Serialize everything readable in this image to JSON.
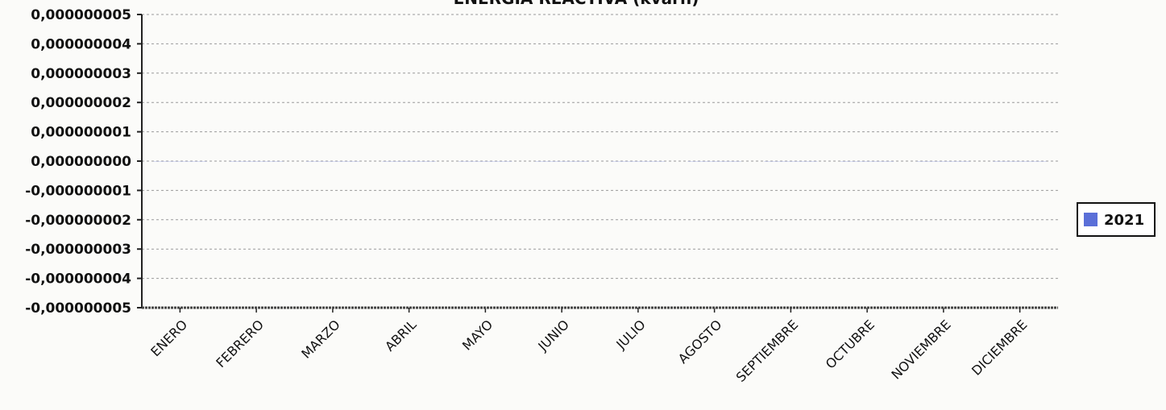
{
  "chart_data": {
    "type": "bar",
    "title": "ENERGIA REACTIVA (kvarh)",
    "xlabel": "",
    "ylabel": "",
    "categories": [
      "ENERO",
      "FEBRERO",
      "MARZO",
      "ABRIL",
      "MAYO",
      "JUNIO",
      "JULIO",
      "AGOSTO",
      "SEPTIEMBRE",
      "OCTUBRE",
      "NOVIEMBRE",
      "DICIEMBRE"
    ],
    "series": [
      {
        "name": "2021",
        "color": "#5a6fd8",
        "values": [
          0,
          0,
          0,
          0,
          0,
          0,
          0,
          0,
          0,
          0,
          0,
          0
        ]
      }
    ],
    "ylim": [
      -5e-09,
      5e-09
    ],
    "yticks": [
      "0,000000005",
      "0,000000004",
      "0,000000003",
      "0,000000002",
      "0,000000001",
      "0,000000000",
      "-0,000000001",
      "-0,000000002",
      "-0,000000003",
      "-0,000000004",
      "-0,000000005"
    ],
    "grid": true,
    "legend_position": "right"
  }
}
